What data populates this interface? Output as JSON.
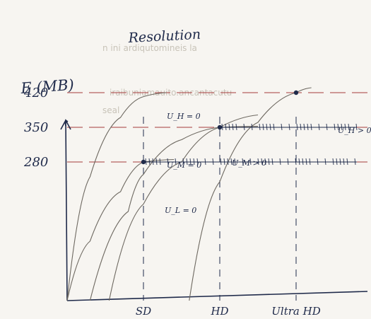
{
  "chart_data": {
    "type": "line",
    "title": "Resolution",
    "ylabel": "E (MB)",
    "xlabel": "",
    "x_categories": [
      "SD",
      "HD",
      "Ultra HD"
    ],
    "y_ticks": [
      280,
      350,
      420
    ],
    "grid": "dashed guide lines at each labelled tick",
    "legend": "none",
    "annotations": [
      "U_H = 0",
      "U_M = 0",
      "U_L = 0",
      "U_M > 0",
      "U_H > 0"
    ],
    "series": [
      {
        "name": "",
        "description": "high curve, levels off at 420 around SD",
        "points": [
          [
            0,
            0
          ],
          [
            0.3,
            250
          ],
          [
            0.7,
            370
          ],
          [
            1,
            412
          ],
          [
            1.3,
            420
          ]
        ]
      },
      {
        "name": "",
        "description": "middle curve, levels off at 350 around HD",
        "points": [
          [
            0.3,
            0
          ],
          [
            0.8,
            180
          ],
          [
            1,
            255
          ],
          [
            1.5,
            325
          ],
          [
            2,
            350
          ],
          [
            2.5,
            352
          ]
        ]
      },
      {
        "name": "",
        "description": "low curve, levels off at 280 around SD",
        "points": [
          [
            0,
            0
          ],
          [
            0.3,
            120
          ],
          [
            0.7,
            220
          ],
          [
            1,
            280
          ],
          [
            1.4,
            285
          ]
        ]
      },
      {
        "name": "",
        "description": "curve from SD rising through HD at 350",
        "points": [
          [
            0.55,
            0
          ],
          [
            1,
            195
          ],
          [
            1.5,
            280
          ],
          [
            2,
            350
          ],
          [
            2.5,
            375
          ]
        ]
      },
      {
        "name": "",
        "description": "curve from HD rising through Ultra HD at 420",
        "points": [
          [
            1.6,
            0
          ],
          [
            2,
            240
          ],
          [
            2.5,
            360
          ],
          [
            3,
            420
          ],
          [
            3.2,
            430
          ]
        ]
      }
    ],
    "marked_points": [
      {
        "x": "SD",
        "y": 280
      },
      {
        "x": "HD",
        "y": 350
      },
      {
        "x": "Ultra HD",
        "y": 420
      }
    ],
    "flat_segments": [
      {
        "y": 280,
        "from": "SD",
        "to": "past Ultra HD"
      },
      {
        "y": 350,
        "from": "HD",
        "to": "past Ultra HD"
      }
    ]
  },
  "bleed_through_text": [
    "n ini ardiqutomineis la",
    "iraibuniamauito.ancantacutu",
    "seal"
  ],
  "colors": {
    "ink": "#1f2a4a",
    "pencil": "#6d6860",
    "guide": "#a63a3a",
    "paper": "#f7f5f1"
  }
}
